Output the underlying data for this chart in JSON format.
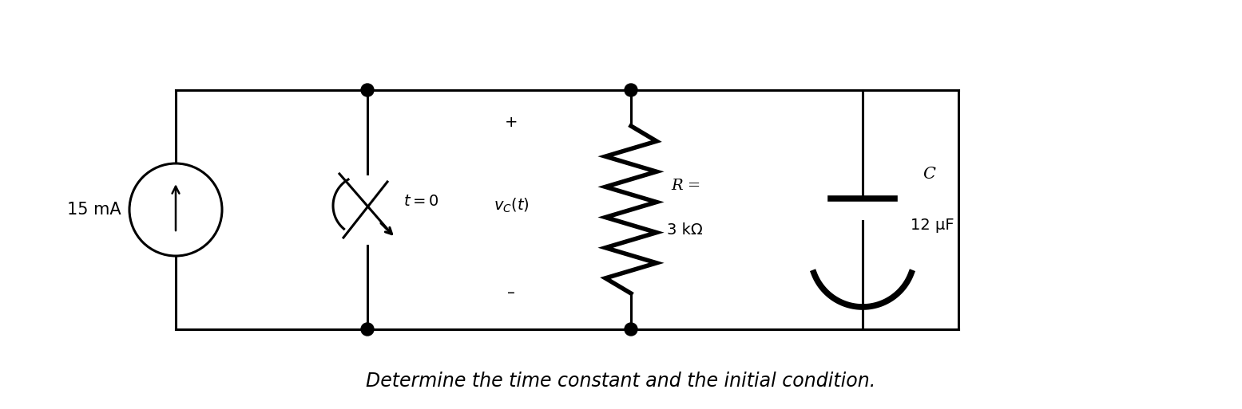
{
  "fig_width": 15.55,
  "fig_height": 5.13,
  "dpi": 100,
  "bg_color": "#ffffff",
  "circuit_color": "#000000",
  "caption": "Determine the time constant and the initial condition.",
  "caption_fontsize": 17,
  "current_source_label": "15 mA",
  "resistor_label1": "R =",
  "resistor_label2": "3 kΩ",
  "capacitor_label1": "C",
  "capacitor_label2": "12 μF",
  "switch_label": "t = 0",
  "plus_label": "+",
  "minus_label": "–"
}
